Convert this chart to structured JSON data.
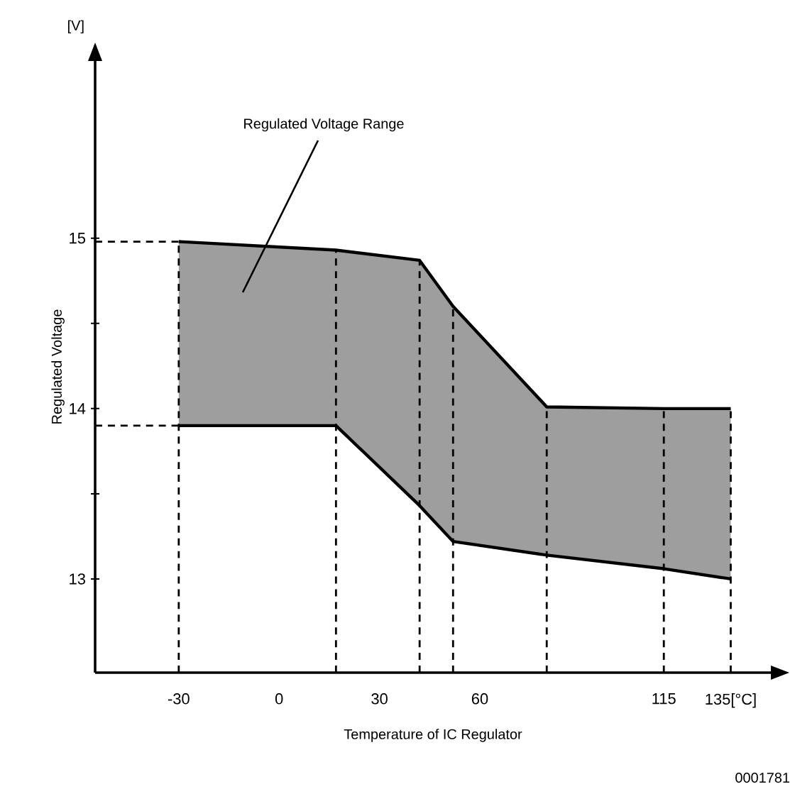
{
  "chart_data": {
    "type": "line",
    "xlabel": "Temperature of IC Regulator",
    "ylabel": "Regulated Voltage",
    "xlim": [
      -55,
      147
    ],
    "ylim": [
      12.45,
      16.04
    ],
    "xticks": [
      -30,
      0,
      30,
      60,
      115,
      {
        "value": 135,
        "label": "135[°C]"
      }
    ],
    "yticks": [
      13,
      {
        "value": 13.5,
        "label": null
      },
      14,
      {
        "value": 14.5,
        "label": null
      },
      15
    ],
    "series": [
      {
        "color": "#000000",
        "x": [
          -30,
          17,
          42,
          52,
          80,
          115,
          135
        ],
        "values": [
          14.98,
          14.93,
          14.87,
          14.6,
          14.01,
          14.0,
          14.0
        ],
        "lower": [
          13.9,
          13.9,
          13.43,
          13.22,
          13.14,
          13.06,
          13.0
        ],
        "upper": [
          14.98,
          14.93,
          14.87,
          14.6,
          14.01,
          14.0,
          14.0
        ]
      },
      {
        "color": "#000000",
        "x": [
          -30,
          17,
          42,
          52,
          80,
          115,
          135
        ],
        "values": [
          13.9,
          13.9,
          13.43,
          13.22,
          13.14,
          13.06,
          13.0
        ]
      }
    ],
    "ref_lines": [
      {
        "axis": "x",
        "value": -30,
        "line_style": "dashed"
      },
      {
        "axis": "x",
        "value": 17,
        "line_style": "dashed"
      },
      {
        "axis": "x",
        "value": 42,
        "line_style": "dashed"
      },
      {
        "axis": "x",
        "value": 52,
        "line_style": "dashed"
      },
      {
        "axis": "x",
        "value": 80,
        "line_style": "dashed"
      },
      {
        "axis": "x",
        "value": 115,
        "line_style": "dashed"
      },
      {
        "axis": "x",
        "value": 135,
        "line_style": "dashed"
      },
      {
        "axis": "y",
        "value": 14.98,
        "line_style": "dashed"
      },
      {
        "axis": "y",
        "value": 13.9,
        "line_style": "dashed"
      }
    ],
    "annotations": [
      "Regulated Voltage Range",
      "[V]",
      "0001781"
    ],
    "grid": false,
    "marker": "none",
    "line_style": "solid"
  }
}
